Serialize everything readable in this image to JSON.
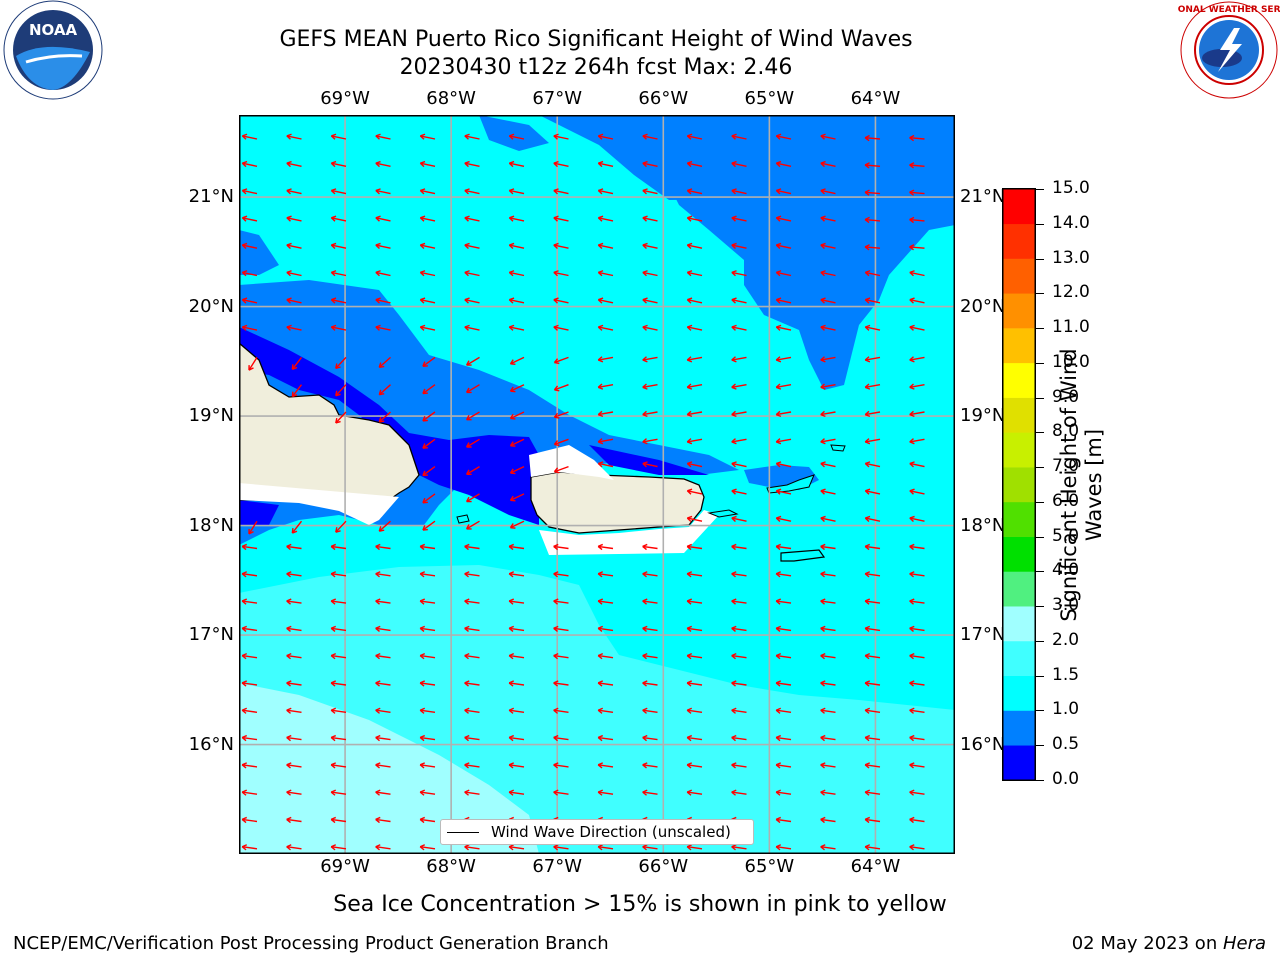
{
  "title": {
    "line1": "GEFS MEAN Puerto Rico Significant Height of Wind Waves",
    "line2": "20230430 t12z 264h fcst   Max: 2.46"
  },
  "logos": {
    "left": {
      "icon": "noaa-logo-icon",
      "text": "NOAA"
    },
    "right": {
      "icon": "nws-logo-icon",
      "text": "NATIONAL WEATHER SERVICE"
    }
  },
  "map": {
    "lon_labels": [
      "69°W",
      "68°W",
      "67°W",
      "66°W",
      "65°W",
      "64°W"
    ],
    "lat_labels": [
      "21°N",
      "20°N",
      "19°N",
      "18°N",
      "17°N",
      "16°N"
    ],
    "lon_values": [
      -69,
      -68,
      -67,
      -66,
      -65,
      -64
    ],
    "lat_values": [
      21,
      20,
      19,
      18,
      17,
      16
    ],
    "extent": {
      "lon_min": -70.0,
      "lon_max": -63.25,
      "lat_min": 15.0,
      "lat_max": 21.75
    },
    "arrow_color": "#ff0000",
    "legend_label": "Wind Wave Direction (unscaled)",
    "land_color": "#f0eedc"
  },
  "colorbar": {
    "label": "Significant Height of Wind Waves [m]",
    "ticks": [
      "0.0",
      "0.5",
      "1.0",
      "1.5",
      "2.0",
      "3.0",
      "4.0",
      "5.0",
      "6.0",
      "7.0",
      "8.0",
      "9.0",
      "10.0",
      "11.0",
      "12.0",
      "13.0",
      "14.0",
      "15.0"
    ],
    "colors": [
      "#0000ff",
      "#0080ff",
      "#00ffff",
      "#40ffff",
      "#a0ffff",
      "#50f080",
      "#00e000",
      "#50e000",
      "#a0e000",
      "#c8f000",
      "#e0e000",
      "#ffff00",
      "#ffc000",
      "#ff9000",
      "#ff6000",
      "#ff3000",
      "#ff0000"
    ]
  },
  "subtitle": "Sea Ice Concentration > 15% is shown in pink to yellow",
  "footer": {
    "left": "NCEP/EMC/Verification Post Processing Product Generation Branch",
    "right_date": "02 May 2023 on ",
    "right_host": "Hera"
  }
}
